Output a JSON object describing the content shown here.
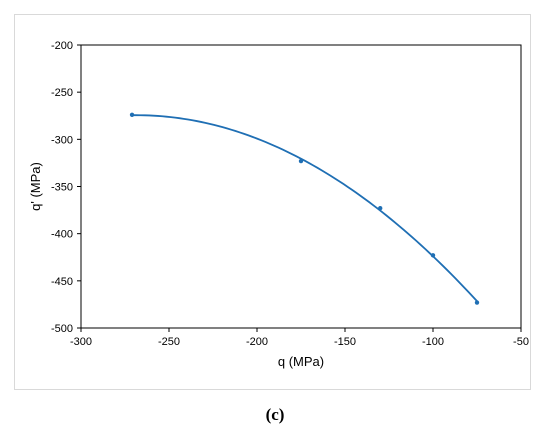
{
  "chart_data": {
    "type": "scatter",
    "xlabel": "q (MPa)",
    "ylabel": "q' (MPa)",
    "xlim": [
      -300,
      -50
    ],
    "ylim": [
      -500,
      -200
    ],
    "x_ticks": [
      -300,
      -250,
      -200,
      -150,
      -100,
      -50
    ],
    "y_ticks": [
      -200,
      -250,
      -300,
      -350,
      -400,
      -450,
      -500
    ],
    "grid": false,
    "legend": "none",
    "series": [
      {
        "points": [
          {
            "x": -271,
            "y": -274
          },
          {
            "x": -175,
            "y": -323
          },
          {
            "x": -130,
            "y": -373
          },
          {
            "x": -100,
            "y": -423
          },
          {
            "x": -75,
            "y": -473
          }
        ],
        "trendline": "polynomial",
        "color": "#1f6fb4"
      }
    ]
  },
  "caption": "(c)"
}
